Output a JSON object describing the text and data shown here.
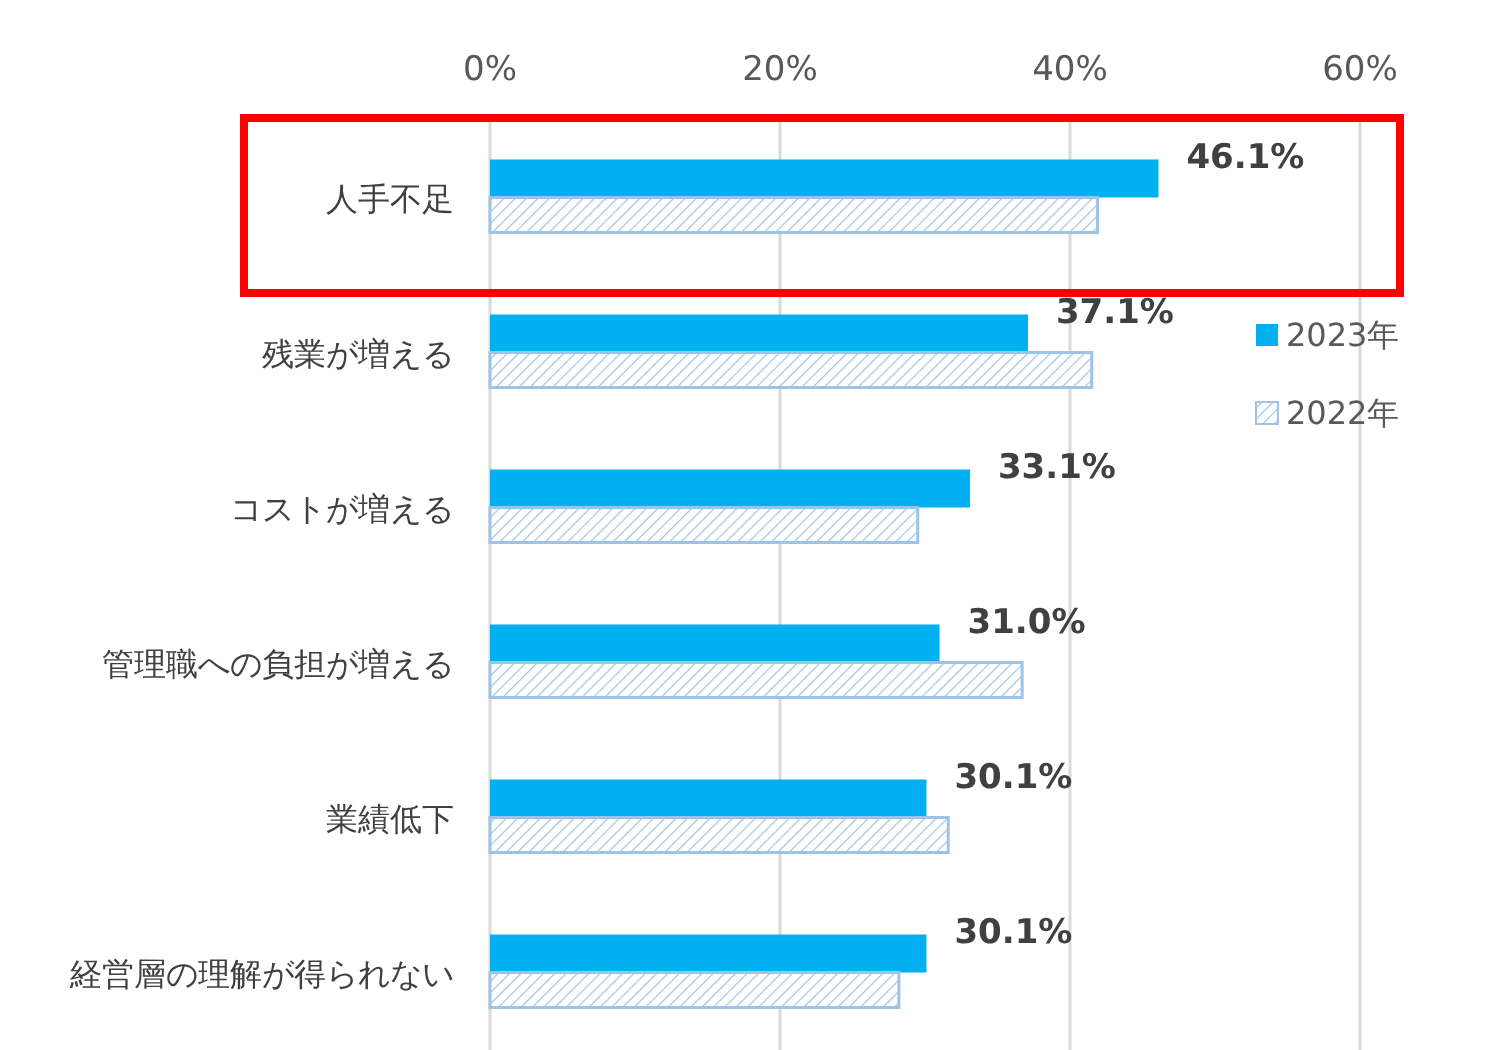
{
  "chart_data": {
    "type": "bar",
    "orientation": "horizontal",
    "categories": [
      "人手不足",
      "残業が増える",
      "コストが増える",
      "管理職への負担が増える",
      "業績低下",
      "経営層の理解が得られない"
    ],
    "series": [
      {
        "name": "2023年",
        "color": "#00b0f0",
        "values": [
          46.1,
          37.1,
          33.1,
          31.0,
          30.1,
          30.1
        ],
        "value_labels": [
          "46.1%",
          "37.1%",
          "33.1%",
          "31.0%",
          "30.1%",
          "30.1%"
        ]
      },
      {
        "name": "2022年",
        "color": "#9dc3e6",
        "values": [
          41.9,
          41.5,
          29.5,
          36.7,
          31.6,
          28.2
        ]
      }
    ],
    "xlim": [
      0,
      60
    ],
    "xticks": [
      {
        "value": 0,
        "label": "0%"
      },
      {
        "value": 20,
        "label": "20%"
      },
      {
        "value": 40,
        "label": "40%"
      },
      {
        "value": 60,
        "label": "60%"
      }
    ],
    "grid": "x",
    "legend": "right"
  }
}
